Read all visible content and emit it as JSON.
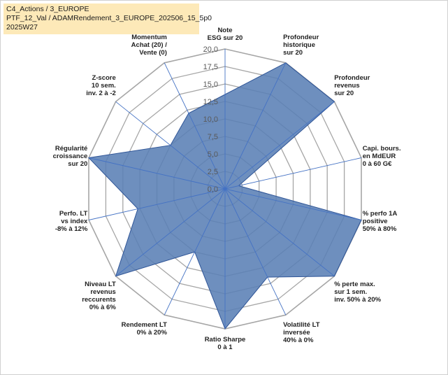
{
  "header": {
    "line1": "C4_Actions / 3_EUROPE",
    "line2": "PTF_12_Val / ADAMRendement_3_EUROPE_202506_15_5p0",
    "line3": "2025W27"
  },
  "colors": {
    "fill": "#5a7fb5",
    "stroke": "#2f5597",
    "spoke": "#4472c4",
    "grid": "#a6a6a6",
    "header_bg": "#fde9b8"
  },
  "chart_data": {
    "type": "radar",
    "rmax": 20,
    "tick_step": 2.5,
    "tick_labels": [
      "0,0",
      "2,5",
      "5,0",
      "7,5",
      "10,0",
      "12,5",
      "15,0",
      "17,5",
      "20,0"
    ],
    "axes": [
      {
        "label": [
          "Note",
          "ESG sur 20"
        ],
        "value": 13.5
      },
      {
        "label": [
          "Profondeur",
          "historique",
          "sur 20"
        ],
        "value": 20
      },
      {
        "label": [
          "Profondeur",
          "revenus",
          "sur 20"
        ],
        "value": 20
      },
      {
        "label": [
          "Capi. bours.",
          "en MdEUR",
          "0 à 60 G€"
        ],
        "value": 2.0
      },
      {
        "label": [
          "% perfo 1A",
          "positive",
          "50% à 80%"
        ],
        "value": 20
      },
      {
        "label": [
          "% perte max.",
          "sur 1 sem.",
          "inv. 50% à 20%"
        ],
        "value": 20
      },
      {
        "label": [
          "Volatilité LT",
          "inversée",
          "40% à 0%"
        ],
        "value": 14.0
      },
      {
        "label": [
          "Ratio Sharpe",
          "0 à 1"
        ],
        "value": 20
      },
      {
        "label": [
          "Rendement LT",
          "0% à 20%"
        ],
        "value": 10.0
      },
      {
        "label": [
          "Niveau LT",
          "revenus",
          "reccurents",
          "0% à 6%"
        ],
        "value": 20
      },
      {
        "label": [
          "Perfo. LT",
          "vs index",
          "-8% à 12%"
        ],
        "value": 12.8
      },
      {
        "label": [
          "Régularité",
          "croissance",
          "sur 20"
        ],
        "value": 20
      },
      {
        "label": [
          "Z-score",
          "10 sem.",
          "inv. 2 à -2"
        ],
        "value": 10.0
      },
      {
        "label": [
          "Momentum",
          "Achat (20) /",
          "Vente (0)"
        ],
        "value": 12.0
      }
    ]
  }
}
